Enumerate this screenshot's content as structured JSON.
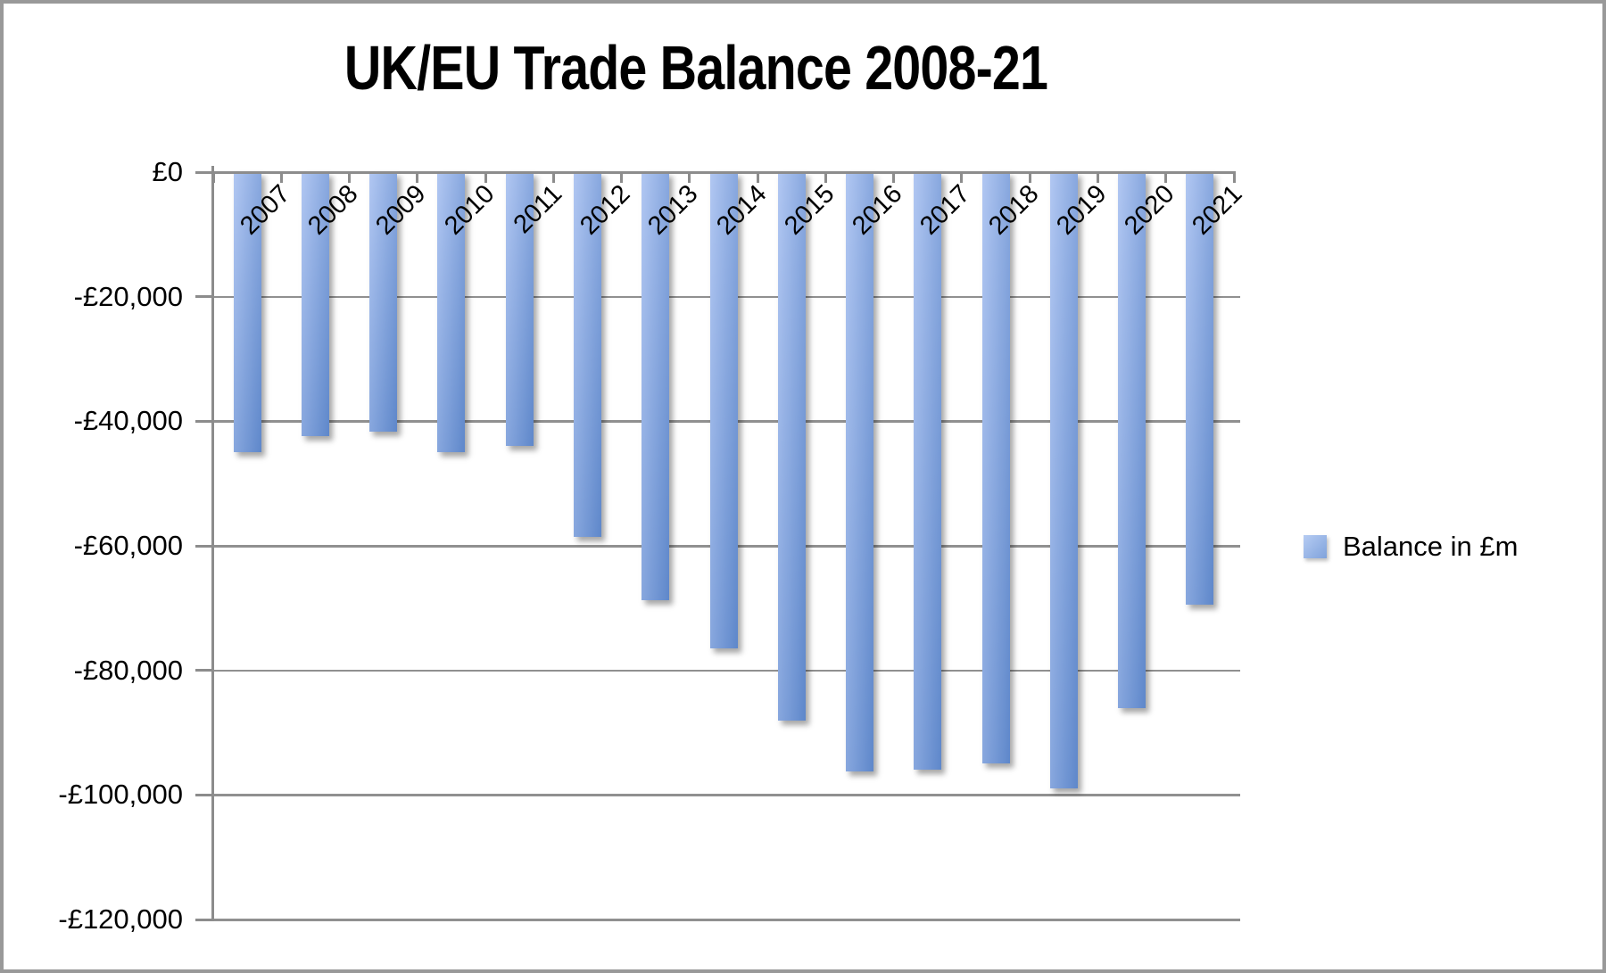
{
  "chart_data": {
    "type": "bar",
    "title": "UK/EU Trade Balance 2008-21",
    "categories": [
      "2007",
      "2008",
      "2009",
      "2010",
      "2011",
      "2012",
      "2013",
      "2014",
      "2015",
      "2016",
      "2017",
      "2018",
      "2019",
      "2020",
      "2021"
    ],
    "series": [
      {
        "name": "Balance in £m",
        "values": [
          -44900,
          -42400,
          -41600,
          -45000,
          -44000,
          -58500,
          -68800,
          -76400,
          -88000,
          -96300,
          -96000,
          -95000,
          -99000,
          -86000,
          -69400
        ]
      }
    ],
    "xlabel": "",
    "ylabel": "",
    "ylim": [
      -120000,
      0
    ],
    "ytick_interval": 20000,
    "ytick_labels": [
      "£0",
      "-£20,000",
      "-£40,000",
      "-£60,000",
      "-£80,000",
      "-£100,000",
      "-£120,000"
    ],
    "grid": true,
    "legend_position": "right",
    "bar_orientation": "vertical-negative"
  },
  "colors": {
    "bar_gradient_top": "#b1c7f2",
    "bar_gradient_bottom": "#5e87ca",
    "legend_gradient_top": "#b6ccf3",
    "legend_gradient_bottom": "#7fa2db",
    "gridline": "#909090",
    "axis": "#8c8c8c",
    "text": "#000000",
    "frame_border": "#999999",
    "background": "#ffffff"
  }
}
